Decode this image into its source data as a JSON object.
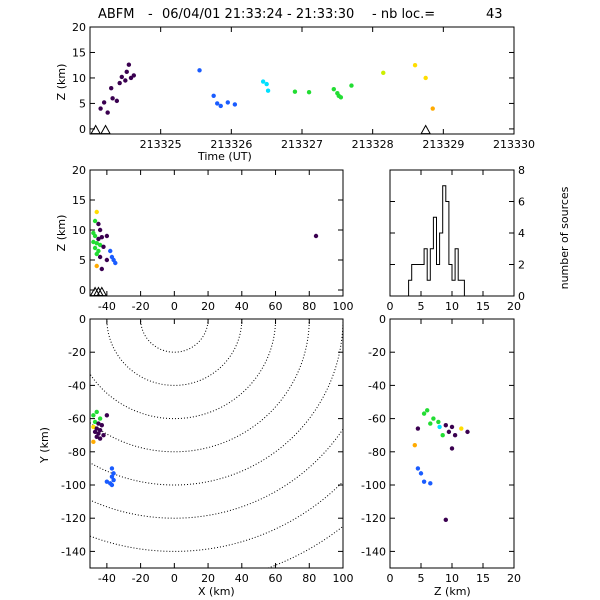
{
  "header": {
    "station": "ABFM",
    "separator": "-",
    "datetime_range": "06/04/01 21:33:24 - 21:33:30",
    "nb_label": "- nb loc.=",
    "nb_value": "43"
  },
  "colors": {
    "axes": "#000000",
    "background": "#ffffff",
    "palette": [
      "#3a0050",
      "#1a5cff",
      "#00e0ff",
      "#22dd33",
      "#ccee00",
      "#ffdd00",
      "#ffaa00"
    ]
  },
  "chart_data": [
    {
      "id": "time_height",
      "type": "scatter",
      "xlabel": "Time (UT)",
      "ylabel": "Z (km)",
      "xlim": [
        213324.0,
        213330.0
      ],
      "ylim": [
        -1,
        20
      ],
      "xticks": [
        213325,
        213326,
        213327,
        213328,
        213329,
        213330
      ],
      "yticks": [
        0,
        5,
        10,
        15,
        20
      ],
      "stations_marker": "triangle",
      "station_times": [
        213324.08,
        213324.22,
        213328.75
      ],
      "points": [
        {
          "x": 213324.15,
          "y": 4.0,
          "c": 0
        },
        {
          "x": 213324.2,
          "y": 5.2,
          "c": 0
        },
        {
          "x": 213324.25,
          "y": 3.2,
          "c": 0
        },
        {
          "x": 213324.3,
          "y": 8.0,
          "c": 0
        },
        {
          "x": 213324.32,
          "y": 6.0,
          "c": 0
        },
        {
          "x": 213324.38,
          "y": 5.5,
          "c": 0
        },
        {
          "x": 213324.42,
          "y": 9.0,
          "c": 0
        },
        {
          "x": 213324.45,
          "y": 10.2,
          "c": 0
        },
        {
          "x": 213324.5,
          "y": 9.5,
          "c": 0
        },
        {
          "x": 213324.52,
          "y": 11.2,
          "c": 0
        },
        {
          "x": 213324.55,
          "y": 12.6,
          "c": 0
        },
        {
          "x": 213324.58,
          "y": 10.0,
          "c": 0
        },
        {
          "x": 213324.62,
          "y": 10.5,
          "c": 0
        },
        {
          "x": 213325.55,
          "y": 11.5,
          "c": 1
        },
        {
          "x": 213325.75,
          "y": 6.5,
          "c": 1
        },
        {
          "x": 213325.8,
          "y": 5.0,
          "c": 1
        },
        {
          "x": 213325.85,
          "y": 4.5,
          "c": 1
        },
        {
          "x": 213325.95,
          "y": 5.2,
          "c": 1
        },
        {
          "x": 213326.05,
          "y": 4.8,
          "c": 1
        },
        {
          "x": 213326.45,
          "y": 9.3,
          "c": 2
        },
        {
          "x": 213326.5,
          "y": 8.8,
          "c": 2
        },
        {
          "x": 213326.52,
          "y": 7.5,
          "c": 2
        },
        {
          "x": 213326.9,
          "y": 7.3,
          "c": 3
        },
        {
          "x": 213327.1,
          "y": 7.2,
          "c": 3
        },
        {
          "x": 213327.45,
          "y": 7.8,
          "c": 3
        },
        {
          "x": 213327.5,
          "y": 7.0,
          "c": 3
        },
        {
          "x": 213327.52,
          "y": 6.5,
          "c": 3
        },
        {
          "x": 213327.55,
          "y": 6.2,
          "c": 3
        },
        {
          "x": 213327.7,
          "y": 8.5,
          "c": 3
        },
        {
          "x": 213328.15,
          "y": 11.0,
          "c": 4
        },
        {
          "x": 213328.6,
          "y": 12.5,
          "c": 5
        },
        {
          "x": 213328.75,
          "y": 10.0,
          "c": 5
        },
        {
          "x": 213328.85,
          "y": 4.0,
          "c": 6
        }
      ]
    },
    {
      "id": "x_z",
      "type": "scatter",
      "ylabel": "Z (km)",
      "xlim": [
        -50,
        100
      ],
      "ylim": [
        -1,
        20
      ],
      "xticks": [
        -40,
        -20,
        0,
        20,
        40,
        60,
        80,
        100
      ],
      "yticks": [
        0,
        5,
        10,
        15,
        20
      ],
      "station_x": [
        -47,
        -45,
        -43
      ],
      "points": [
        {
          "x": -46,
          "y": 13.0,
          "c": 5
        },
        {
          "x": -47,
          "y": 11.5,
          "c": 3
        },
        {
          "x": -45,
          "y": 11.0,
          "c": 0
        },
        {
          "x": -44,
          "y": 10.0,
          "c": 0
        },
        {
          "x": -48,
          "y": 9.5,
          "c": 3
        },
        {
          "x": -47,
          "y": 9.0,
          "c": 3
        },
        {
          "x": -45,
          "y": 8.5,
          "c": 0
        },
        {
          "x": -43,
          "y": 8.8,
          "c": 0
        },
        {
          "x": -48,
          "y": 8.0,
          "c": 3
        },
        {
          "x": -46,
          "y": 7.8,
          "c": 3
        },
        {
          "x": -44,
          "y": 7.5,
          "c": 3
        },
        {
          "x": -42,
          "y": 7.2,
          "c": 0
        },
        {
          "x": -40,
          "y": 9.0,
          "c": 0
        },
        {
          "x": -47,
          "y": 7.0,
          "c": 3
        },
        {
          "x": -45,
          "y": 6.5,
          "c": 3
        },
        {
          "x": -46,
          "y": 6.0,
          "c": 3
        },
        {
          "x": -44,
          "y": 5.5,
          "c": 0
        },
        {
          "x": -38,
          "y": 6.5,
          "c": 1
        },
        {
          "x": -37,
          "y": 5.5,
          "c": 1
        },
        {
          "x": -36,
          "y": 5.0,
          "c": 1
        },
        {
          "x": -35,
          "y": 4.5,
          "c": 1
        },
        {
          "x": -40,
          "y": 5.0,
          "c": 0
        },
        {
          "x": -46,
          "y": 4.0,
          "c": 6
        },
        {
          "x": -43,
          "y": 3.5,
          "c": 0
        },
        {
          "x": 84,
          "y": 9.0,
          "c": 0
        }
      ]
    },
    {
      "id": "height_histogram",
      "type": "line",
      "y2label": "number of sources",
      "xlim": [
        0,
        20
      ],
      "ylim": [
        0,
        8
      ],
      "xticks": [
        0,
        5,
        10,
        15,
        20
      ],
      "y2ticks": [
        0,
        2,
        4,
        6,
        8
      ],
      "bin_edges": [
        0,
        1,
        2,
        3,
        3.5,
        4,
        4.5,
        5,
        5.5,
        6,
        6.5,
        7,
        7.5,
        8,
        8.5,
        9,
        9.5,
        10,
        10.5,
        11,
        11.5,
        12,
        13,
        20
      ],
      "counts": [
        0,
        0,
        0,
        1,
        2,
        2,
        2,
        2,
        3,
        1,
        3,
        5,
        2,
        4,
        7,
        6,
        2,
        1,
        3,
        1,
        1,
        0,
        0
      ]
    },
    {
      "id": "x_y_plan",
      "type": "scatter",
      "xlabel": "X (km)",
      "ylabel": "Y (km)",
      "xlim": [
        -50,
        100
      ],
      "ylim": [
        -150,
        0
      ],
      "xticks": [
        -40,
        -20,
        0,
        20,
        40,
        60,
        80,
        100
      ],
      "yticks": [
        0,
        -20,
        -40,
        -60,
        -80,
        -100,
        -120,
        -140
      ],
      "range_rings_km": [
        20,
        40,
        60,
        80,
        100,
        120,
        140,
        160,
        180
      ],
      "ring_center": [
        0,
        0
      ],
      "points": [
        {
          "x": -48,
          "y": -58,
          "c": 3
        },
        {
          "x": -46,
          "y": -56,
          "c": 3
        },
        {
          "x": -47,
          "y": -62,
          "c": 3
        },
        {
          "x": -44,
          "y": -60,
          "c": 3
        },
        {
          "x": -48,
          "y": -65,
          "c": 5
        },
        {
          "x": -45,
          "y": -63,
          "c": 0
        },
        {
          "x": -43,
          "y": -64,
          "c": 0
        },
        {
          "x": -46,
          "y": -66,
          "c": 0
        },
        {
          "x": -44,
          "y": -67,
          "c": 0
        },
        {
          "x": -47,
          "y": -68,
          "c": 0
        },
        {
          "x": -45,
          "y": -69,
          "c": 0
        },
        {
          "x": -42,
          "y": -70,
          "c": 0
        },
        {
          "x": -46,
          "y": -71,
          "c": 0
        },
        {
          "x": -44,
          "y": -72,
          "c": 0
        },
        {
          "x": -40,
          "y": -58,
          "c": 0
        },
        {
          "x": -48,
          "y": -74,
          "c": 6
        },
        {
          "x": -37,
          "y": -90,
          "c": 1
        },
        {
          "x": -36,
          "y": -93,
          "c": 1
        },
        {
          "x": -37,
          "y": -95,
          "c": 1
        },
        {
          "x": -36,
          "y": -97,
          "c": 1
        },
        {
          "x": -38,
          "y": -99,
          "c": 1
        },
        {
          "x": -40,
          "y": -98,
          "c": 1
        },
        {
          "x": -37,
          "y": -100,
          "c": 1
        }
      ]
    },
    {
      "id": "z_y",
      "type": "scatter",
      "xlabel": "Z (km)",
      "xlim": [
        0,
        20
      ],
      "ylim": [
        -150,
        0
      ],
      "xticks": [
        0,
        5,
        10,
        15,
        20
      ],
      "yticks": [
        0,
        -20,
        -40,
        -60,
        -80,
        -100,
        -120,
        -140
      ],
      "points": [
        {
          "x": 6.0,
          "y": -55,
          "c": 3
        },
        {
          "x": 5.5,
          "y": -57,
          "c": 3
        },
        {
          "x": 7.0,
          "y": -60,
          "c": 3
        },
        {
          "x": 7.8,
          "y": -62,
          "c": 3
        },
        {
          "x": 6.5,
          "y": -63,
          "c": 3
        },
        {
          "x": 8.0,
          "y": -65,
          "c": 2
        },
        {
          "x": 9.0,
          "y": -64,
          "c": 0
        },
        {
          "x": 10.0,
          "y": -65,
          "c": 0
        },
        {
          "x": 9.5,
          "y": -68,
          "c": 0
        },
        {
          "x": 11.5,
          "y": -66,
          "c": 5
        },
        {
          "x": 12.5,
          "y": -68,
          "c": 0
        },
        {
          "x": 8.5,
          "y": -70,
          "c": 3
        },
        {
          "x": 10.5,
          "y": -70,
          "c": 0
        },
        {
          "x": 4.5,
          "y": -66,
          "c": 0
        },
        {
          "x": 10.0,
          "y": -78,
          "c": 0
        },
        {
          "x": 4.0,
          "y": -76,
          "c": 6
        },
        {
          "x": 4.5,
          "y": -90,
          "c": 1
        },
        {
          "x": 5.0,
          "y": -93,
          "c": 1
        },
        {
          "x": 5.5,
          "y": -98,
          "c": 1
        },
        {
          "x": 6.5,
          "y": -99,
          "c": 1
        },
        {
          "x": 9.0,
          "y": -121,
          "c": 0
        }
      ]
    }
  ]
}
